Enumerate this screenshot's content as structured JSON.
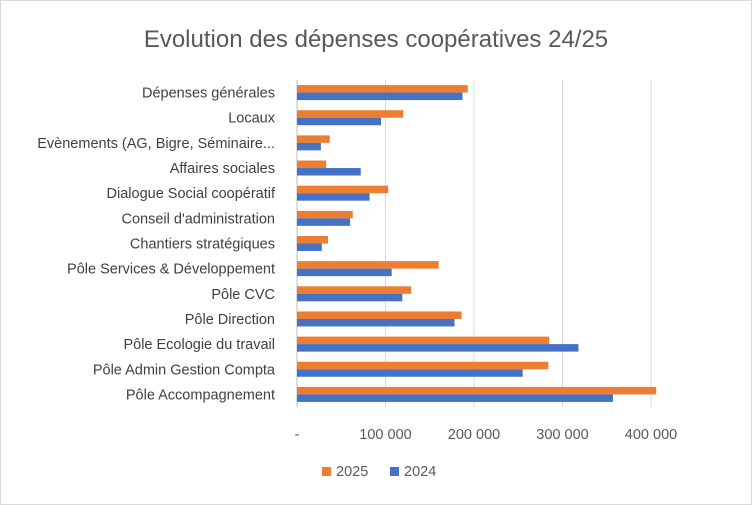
{
  "chart_data": {
    "type": "bar",
    "orientation": "horizontal",
    "title": "Evolution des dépenses coopératives 24/25",
    "xlabel": "",
    "ylabel": "",
    "xlim": [
      0,
      400000
    ],
    "x_ticks": [
      0,
      100000,
      200000,
      300000,
      400000
    ],
    "x_tick_labels": [
      "-",
      "100 000",
      "200 000",
      "300 000",
      "400 000"
    ],
    "grid": "vertical",
    "legend_position": "bottom",
    "categories": [
      "Dépenses générales",
      "Locaux",
      "Evènements (AG, Bigre, Séminaire...",
      "Affaires sociales",
      "Dialogue Social coopératif",
      "Conseil d'administration",
      "Chantiers stratégiques",
      "Pôle Services & Développement",
      "Pôle CVC",
      "Pôle Direction",
      "Pôle Ecologie du travail",
      "Pôle Admin Gestion Compta",
      "Pôle Accompagnement"
    ],
    "series": [
      {
        "name": "2025",
        "color": "#ed7d31",
        "values": [
          193000,
          120000,
          37000,
          33000,
          103000,
          63000,
          35000,
          160000,
          129000,
          186000,
          285000,
          284000,
          406000
        ]
      },
      {
        "name": "2024",
        "color": "#4472c4",
        "values": [
          187000,
          95000,
          27000,
          72000,
          82000,
          60000,
          28000,
          107000,
          119000,
          178000,
          318000,
          255000,
          357000
        ]
      }
    ]
  }
}
